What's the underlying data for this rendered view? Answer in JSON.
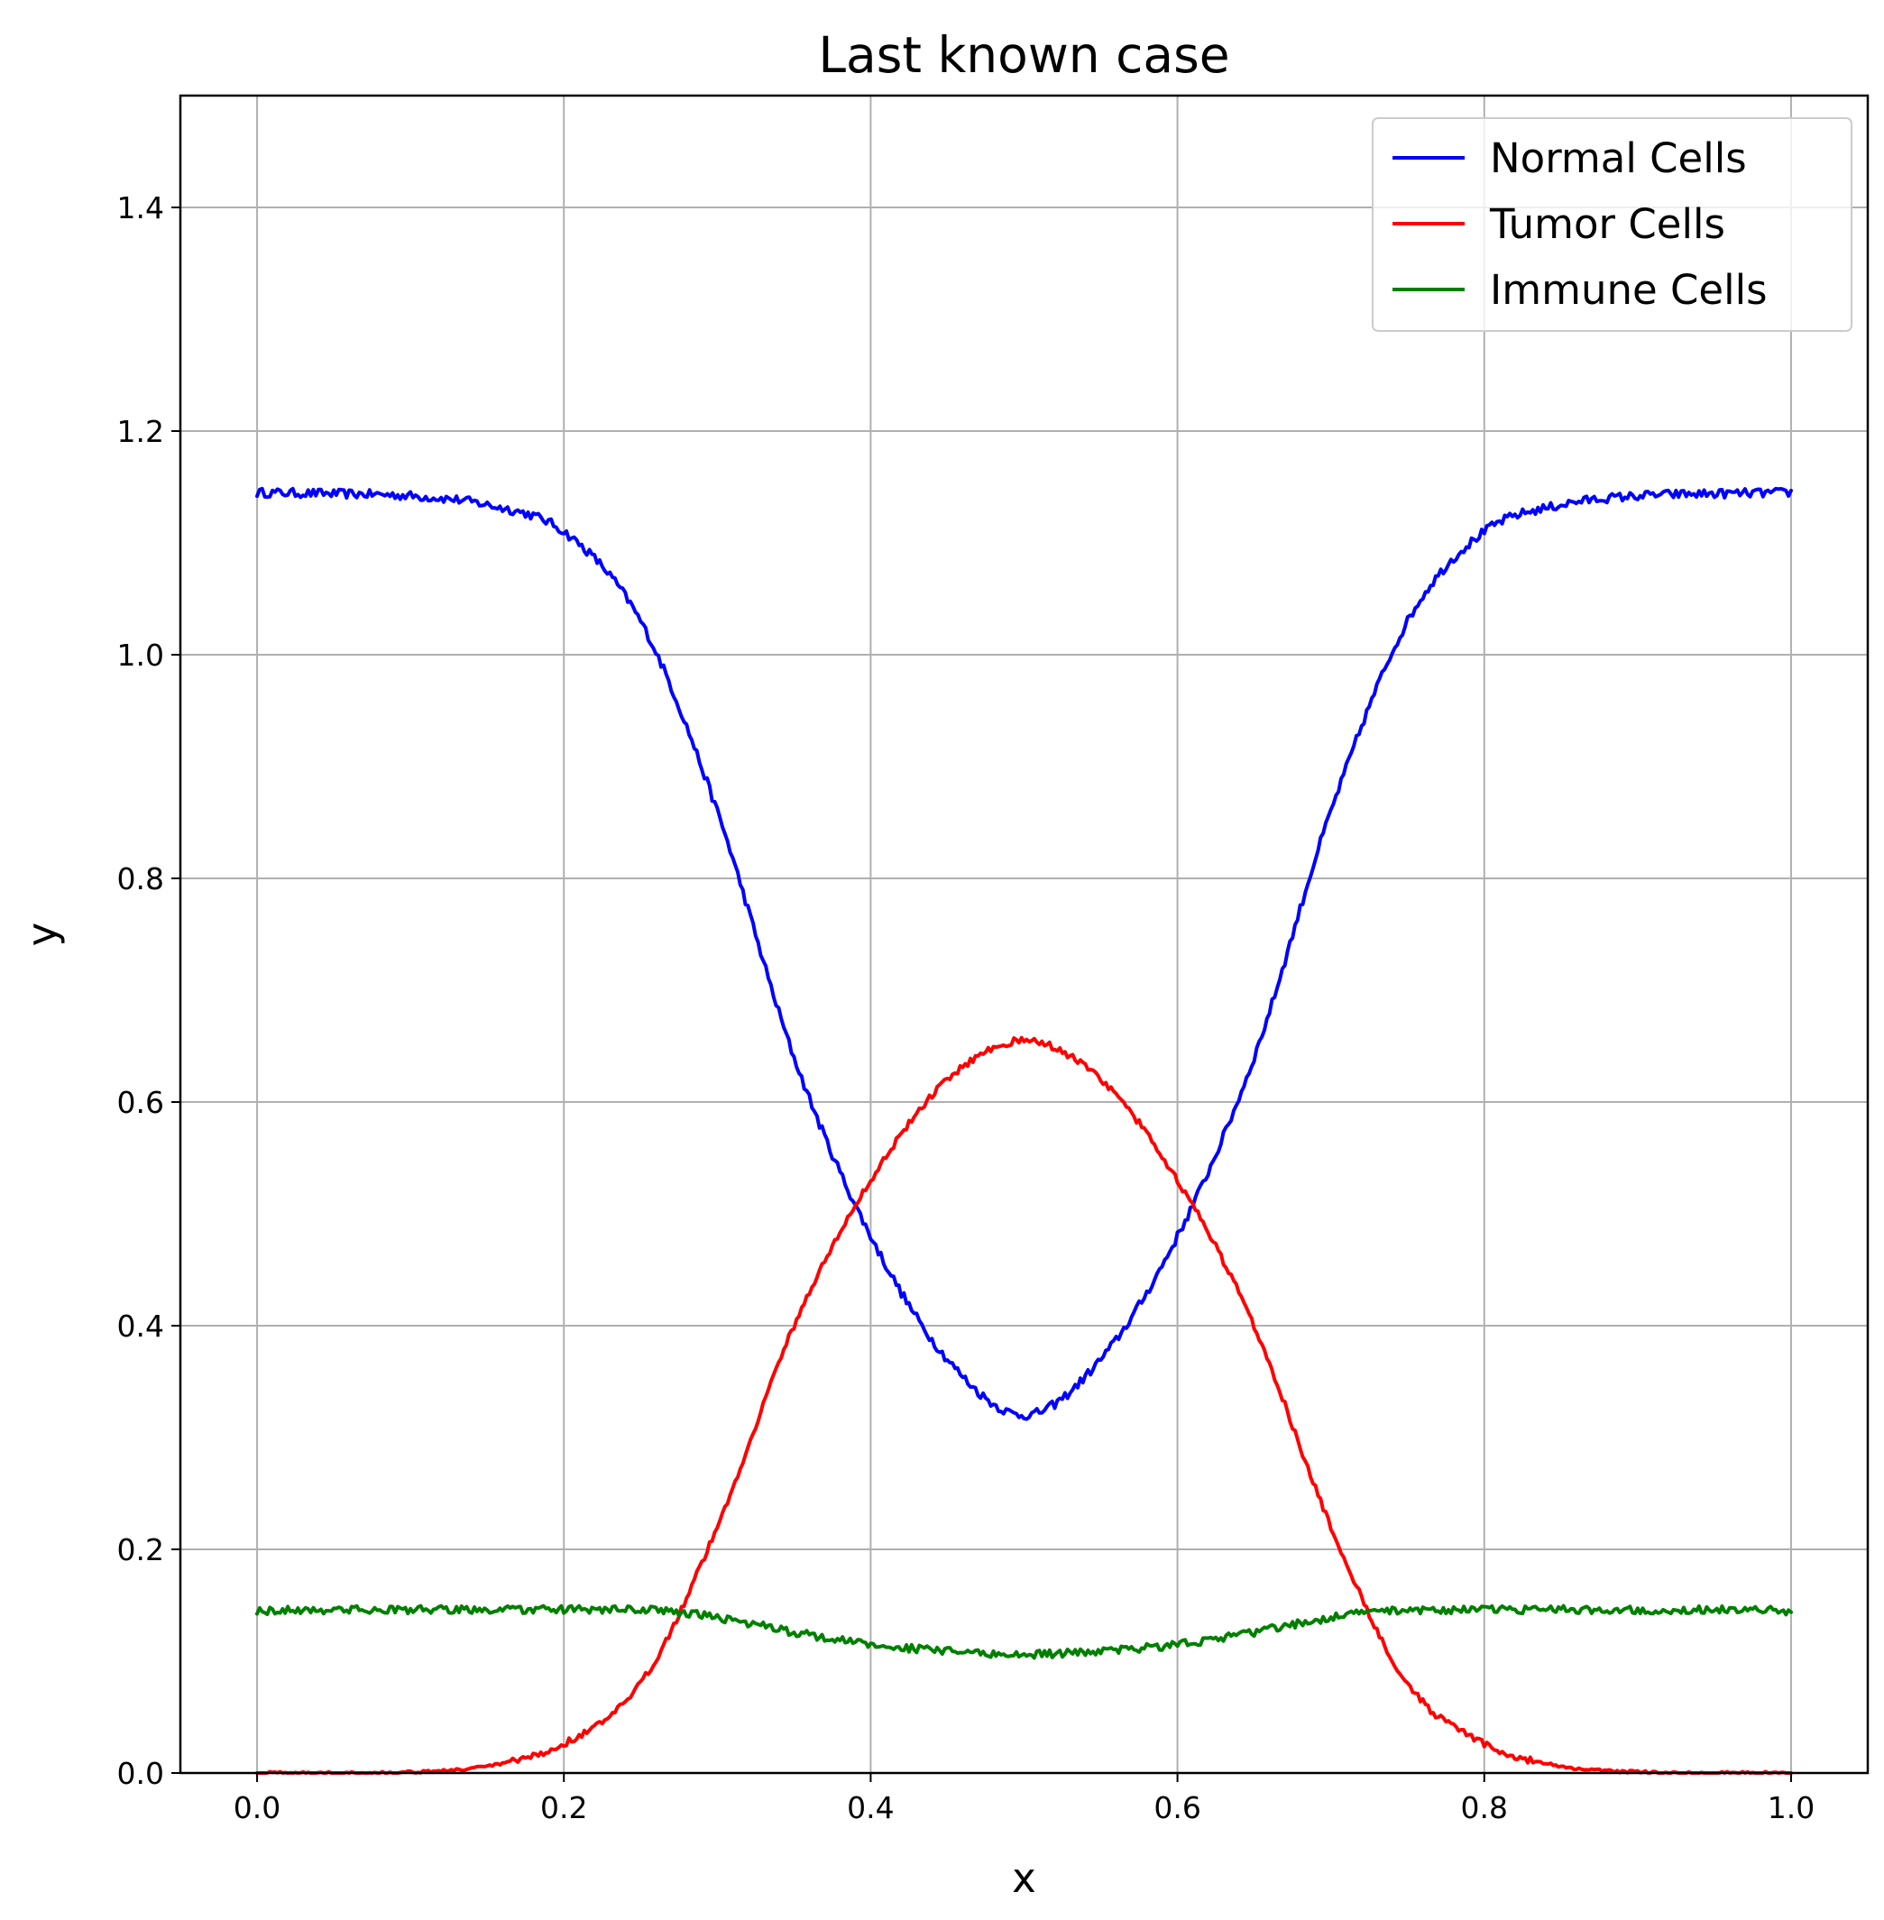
{
  "chart_data": {
    "type": "line",
    "title": "Last known case",
    "xlabel": "x",
    "ylabel": "y",
    "xlim": [
      -0.05,
      1.05
    ],
    "ylim": [
      0.0,
      1.5
    ],
    "x_ticks": [
      0.0,
      0.2,
      0.4,
      0.6,
      0.8,
      1.0
    ],
    "y_ticks": [
      0.0,
      0.2,
      0.4,
      0.6,
      0.8,
      1.0,
      1.2,
      1.4
    ],
    "x_tick_labels": [
      "0.0",
      "0.2",
      "0.4",
      "0.6",
      "0.8",
      "1.0"
    ],
    "y_tick_labels": [
      "0.0",
      "0.2",
      "0.4",
      "0.6",
      "0.8",
      "1.0",
      "1.2",
      "1.4"
    ],
    "grid": true,
    "legend_position": "top-right",
    "x": [
      0.0,
      0.05,
      0.1,
      0.15,
      0.2,
      0.25,
      0.3,
      0.35,
      0.4,
      0.45,
      0.5,
      0.55,
      0.6,
      0.65,
      0.7,
      0.75,
      0.8,
      0.85,
      0.9,
      0.95,
      1.0
    ],
    "series": [
      {
        "name": "Normal Cells",
        "color": "#0000ff",
        "values": [
          1.145,
          1.144,
          1.142,
          1.134,
          1.11,
          1.03,
          0.86,
          0.64,
          0.48,
          0.37,
          0.32,
          0.37,
          0.48,
          0.64,
          0.86,
          1.03,
          1.11,
          1.134,
          1.142,
          1.144,
          1.145
        ]
      },
      {
        "name": "Tumor Cells",
        "color": "#ff0000",
        "values": [
          0.0,
          0.0,
          0.001,
          0.006,
          0.026,
          0.08,
          0.22,
          0.4,
          0.53,
          0.62,
          0.655,
          0.62,
          0.53,
          0.4,
          0.22,
          0.08,
          0.026,
          0.006,
          0.001,
          0.0,
          0.0
        ]
      },
      {
        "name": "Immune Cells",
        "color": "#008000",
        "values": [
          0.145,
          0.146,
          0.146,
          0.146,
          0.146,
          0.146,
          0.139,
          0.126,
          0.115,
          0.109,
          0.106,
          0.109,
          0.115,
          0.126,
          0.139,
          0.146,
          0.146,
          0.146,
          0.146,
          0.146,
          0.145
        ]
      }
    ]
  }
}
